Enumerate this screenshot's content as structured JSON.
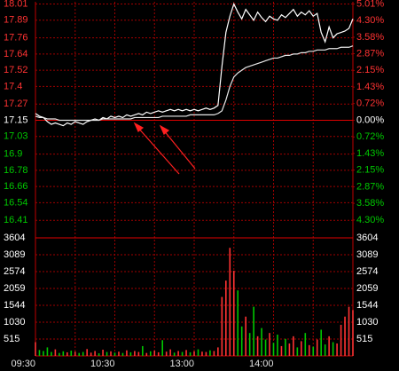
{
  "chart_data": [
    {
      "type": "line",
      "categories": [
        "09:30",
        null,
        null,
        null,
        null,
        null,
        null,
        null,
        null,
        null,
        null,
        null,
        null,
        null,
        null,
        null,
        null,
        null,
        null,
        null,
        "10:30",
        null,
        null,
        null,
        null,
        null,
        null,
        null,
        null,
        null,
        null,
        null,
        null,
        null,
        null,
        null,
        null,
        null,
        null,
        null,
        "13:00",
        null,
        null,
        null,
        null,
        null,
        null,
        null,
        null,
        null,
        null,
        null,
        null,
        null,
        null,
        null,
        null,
        null,
        null,
        null,
        "14:00",
        null,
        null,
        null,
        null,
        null,
        null,
        null,
        null,
        null,
        null,
        null,
        null,
        null,
        null,
        null,
        null,
        null,
        null,
        null,
        null
      ],
      "series": [
        {
          "color": "#ffffff",
          "values": [
            17.2,
            17.18,
            17.17,
            17.14,
            17.12,
            17.13,
            17.12,
            17.11,
            17.13,
            17.12,
            17.14,
            17.13,
            17.12,
            17.14,
            17.15,
            17.16,
            17.15,
            17.17,
            17.16,
            17.18,
            17.17,
            17.18,
            17.17,
            17.19,
            17.18,
            17.19,
            17.2,
            17.19,
            17.21,
            17.2,
            17.21,
            17.22,
            17.21,
            17.22,
            17.23,
            17.22,
            17.23,
            17.22,
            17.23,
            17.22,
            17.23,
            17.22,
            17.23,
            17.24,
            17.23,
            17.24,
            17.26,
            17.55,
            17.8,
            17.92,
            18.01,
            17.95,
            17.9,
            17.97,
            17.93,
            17.89,
            17.95,
            17.91,
            17.88,
            17.92,
            17.9,
            17.89,
            17.93,
            17.91,
            17.94,
            17.97,
            17.92,
            17.95,
            17.93,
            17.96,
            17.92,
            17.94,
            17.8,
            17.73,
            17.84,
            17.76,
            17.79,
            17.8,
            17.81,
            17.83,
            17.9
          ]
        },
        {
          "color": "#e8e8e8",
          "values": [
            17.18,
            17.17,
            17.17,
            17.16,
            17.16,
            17.16,
            17.15,
            17.15,
            17.15,
            17.15,
            17.15,
            17.15,
            17.15,
            17.15,
            17.15,
            17.15,
            17.15,
            17.16,
            17.16,
            17.16,
            17.16,
            17.16,
            17.16,
            17.16,
            17.16,
            17.17,
            17.17,
            17.17,
            17.17,
            17.17,
            17.17,
            17.17,
            17.18,
            17.18,
            17.18,
            17.18,
            17.18,
            17.18,
            17.18,
            17.19,
            17.19,
            17.19,
            17.19,
            17.19,
            17.19,
            17.19,
            17.2,
            17.22,
            17.3,
            17.4,
            17.47,
            17.5,
            17.52,
            17.54,
            17.55,
            17.56,
            17.57,
            17.58,
            17.59,
            17.6,
            17.61,
            17.61,
            17.62,
            17.63,
            17.63,
            17.64,
            17.64,
            17.65,
            17.65,
            17.66,
            17.66,
            17.67,
            17.67,
            17.67,
            17.68,
            17.68,
            17.68,
            17.69,
            17.69,
            17.69,
            17.7
          ]
        }
      ],
      "ylim": [
        16.28,
        18.02
      ],
      "yticks": [
        18.01,
        17.89,
        17.76,
        17.64,
        17.52,
        17.4,
        17.27,
        17.15,
        17.03,
        16.9,
        16.78,
        16.66,
        16.54,
        16.41
      ],
      "y2lim": [
        -5.07,
        5.07
      ],
      "y2ticks": [
        {
          "value": 5.01,
          "label": "5.01%"
        },
        {
          "value": 4.3,
          "label": "4.30%"
        },
        {
          "value": 3.58,
          "label": "3.58%"
        },
        {
          "value": 2.87,
          "label": "2.87%"
        },
        {
          "value": 2.15,
          "label": "2.15%"
        },
        {
          "value": 1.43,
          "label": "1.43%"
        },
        {
          "value": 0.72,
          "label": "0.72%"
        },
        {
          "value": 0,
          "label": "0.00%"
        },
        {
          "value": -0.72,
          "label": "0.72%"
        },
        {
          "value": -1.43,
          "label": "1.43%"
        },
        {
          "value": -2.15,
          "label": "2.15%"
        },
        {
          "value": -2.87,
          "label": "2.87%"
        },
        {
          "value": -3.58,
          "label": "3.58%"
        },
        {
          "value": -4.3,
          "label": "4.30%"
        }
      ],
      "up_color": "#ff3232",
      "down_color": "#00c800",
      "flat_color": "#ffffff",
      "grid_color": "#a00000"
    },
    {
      "type": "bar",
      "values": [
        420,
        180,
        150,
        260,
        120,
        200,
        90,
        140,
        110,
        160,
        130,
        90,
        120,
        210,
        100,
        150,
        80,
        190,
        120,
        140,
        100,
        130,
        90,
        170,
        110,
        150,
        120,
        300,
        90,
        140,
        160,
        110,
        480,
        130,
        200,
        100,
        150,
        120,
        180,
        110,
        140,
        200,
        130,
        120,
        170,
        150,
        260,
        1800,
        2300,
        3300,
        2600,
        2000,
        900,
        1200,
        700,
        1500,
        600,
        850,
        500,
        700,
        400,
        650,
        300,
        520,
        380,
        600,
        260,
        450,
        700,
        330,
        280,
        500,
        800,
        350,
        600,
        420,
        380,
        950,
        1200,
        1500,
        1400
      ],
      "ylim": [
        0,
        3604
      ],
      "yticks": [
        3604,
        3089,
        2574,
        2059,
        1544,
        1030,
        515
      ]
    }
  ]
}
